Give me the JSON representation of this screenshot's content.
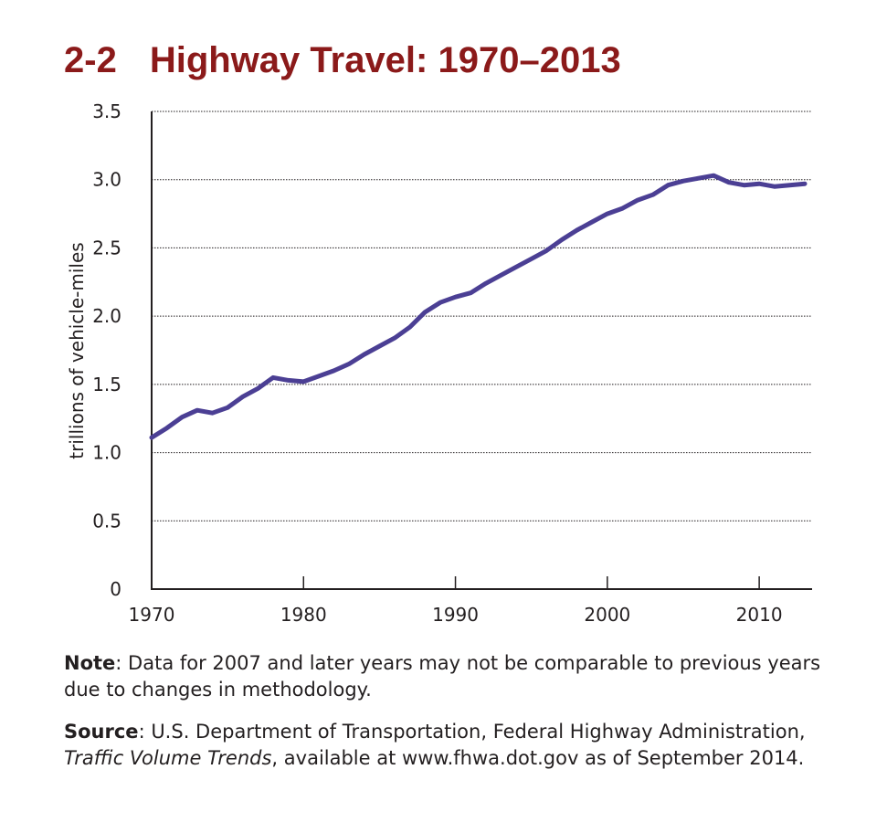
{
  "title": {
    "number": "2-2",
    "text": "Highway Travel: 1970–2013"
  },
  "chart_data": {
    "type": "line",
    "title": "Highway Travel: 1970–2013",
    "xlabel": "",
    "ylabel": "trillions of vehicle-miles",
    "xlim": [
      1970,
      2013
    ],
    "ylim": [
      0,
      3.5
    ],
    "x_ticks": [
      "1970",
      "1980",
      "1990",
      "2000",
      "2010"
    ],
    "y_ticks": [
      "0",
      "0.5",
      "1.0",
      "1.5",
      "2.0",
      "2.5",
      "3.0",
      "3.5"
    ],
    "grid": "horizontal dotted",
    "line_color": "#4b3f94",
    "series": [
      {
        "x": [
          1970,
          1971,
          1972,
          1973,
          1974,
          1975,
          1976,
          1977,
          1978,
          1979,
          1980,
          1981,
          1982,
          1983,
          1984,
          1985,
          1986,
          1987,
          1988,
          1989,
          1990,
          1991,
          1992,
          1993,
          1994,
          1995,
          1996,
          1997,
          1998,
          1999,
          2000,
          2001,
          2002,
          2003,
          2004,
          2005,
          2006,
          2007,
          2008,
          2009,
          2010,
          2011,
          2012,
          2013
        ],
        "values": [
          1.11,
          1.18,
          1.26,
          1.31,
          1.29,
          1.33,
          1.41,
          1.47,
          1.55,
          1.53,
          1.52,
          1.56,
          1.6,
          1.65,
          1.72,
          1.78,
          1.84,
          1.92,
          2.03,
          2.1,
          2.14,
          2.17,
          2.24,
          2.3,
          2.36,
          2.42,
          2.48,
          2.56,
          2.63,
          2.69,
          2.75,
          2.79,
          2.85,
          2.89,
          2.96,
          2.99,
          3.01,
          3.03,
          2.98,
          2.96,
          2.97,
          2.95,
          2.96,
          2.97
        ]
      }
    ]
  },
  "note": {
    "label": "Note",
    "text": ": Data for 2007 and later years may not be comparable to previous years due to changes in methodology."
  },
  "source": {
    "label": "Source",
    "text_before": ": U.S. Department of Transportation, Federal Highway Administration, ",
    "italic": "Traffic Volume Trends",
    "text_after": ", available at www.fhwa.dot.gov as of September 2014."
  }
}
